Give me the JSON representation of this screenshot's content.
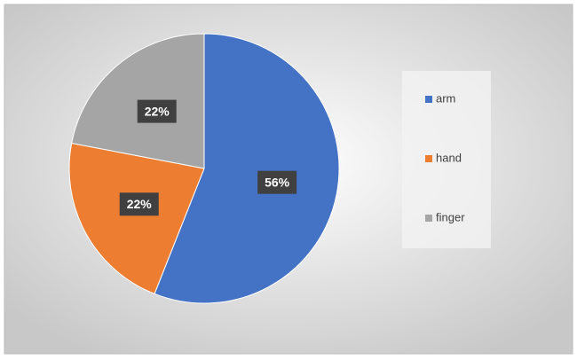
{
  "chart_data": {
    "type": "pie",
    "categories": [
      "arm",
      "hand",
      "finger"
    ],
    "values": [
      56,
      22,
      22
    ],
    "value_labels": [
      "56%",
      "22%",
      "22%"
    ],
    "colors": [
      "#4472c4",
      "#ed7d31",
      "#a5a5a5"
    ],
    "legend": "right"
  }
}
